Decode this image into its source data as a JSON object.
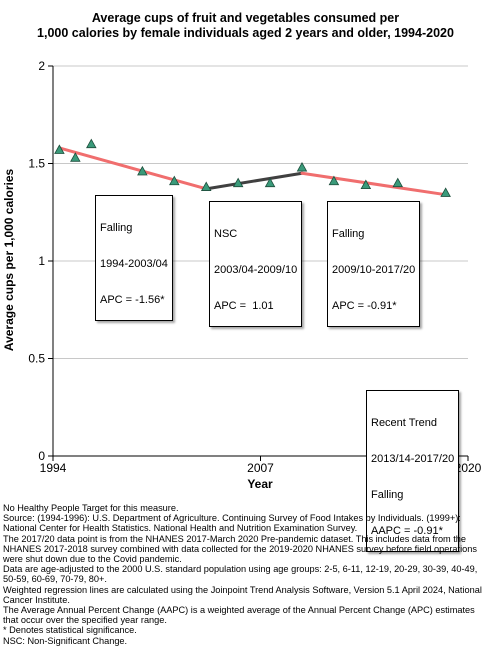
{
  "chart_data": {
    "type": "line",
    "title_lines": [
      "Average cups of fruit and vegetables consumed per",
      "1,000 calories by female individuals aged 2 years and older, 1994-2020"
    ],
    "xlabel": "Year",
    "ylabel": "Average cups per 1,000 calories",
    "xlim": [
      1994,
      2020
    ],
    "ylim": [
      0,
      2
    ],
    "x_ticks": [
      1994,
      2007,
      2020
    ],
    "y_ticks": [
      0,
      0.5,
      1,
      1.5,
      2
    ],
    "y_tick_labels": [
      "0",
      "0.5",
      "1",
      "1.5",
      "2"
    ],
    "grid": "horizontal",
    "observed": {
      "x": [
        1994.4,
        1995.4,
        1996.4,
        1999.6,
        2001.6,
        2003.6,
        2005.6,
        2007.6,
        2009.6,
        2011.6,
        2013.6,
        2015.6,
        2018.6
      ],
      "y": [
        1.57,
        1.53,
        1.6,
        1.46,
        1.41,
        1.38,
        1.4,
        1.4,
        1.48,
        1.41,
        1.39,
        1.4,
        1.35
      ],
      "color": "#3a9a7a"
    },
    "trend_segments": [
      {
        "x": [
          1994.4,
          2003.6
        ],
        "y": [
          1.58,
          1.37
        ],
        "color": "#f06e6e"
      },
      {
        "x": [
          2003.6,
          2009.6
        ],
        "y": [
          1.37,
          1.45
        ],
        "color": "#404040"
      },
      {
        "x": [
          2009.6,
          2018.6
        ],
        "y": [
          1.45,
          1.34
        ],
        "color": "#f06e6e"
      }
    ],
    "annotations": [
      {
        "lines": [
          "Falling",
          "1994-2003/04",
          "APC = -1.56*"
        ]
      },
      {
        "lines": [
          "NSC",
          "2003/04-2009/10",
          "APC =  1.01"
        ]
      },
      {
        "lines": [
          "Falling",
          "2009/10-2017/20",
          "APC = -0.91*"
        ]
      },
      {
        "lines": [
          "Recent Trend",
          "2013/14-2017/20",
          "Falling",
          "AAPC = -0.91*"
        ]
      }
    ]
  },
  "footnotes": [
    "No Healthy People Target for this measure.",
    "Source: (1994-1996): U.S. Department of Agriculture. Continuing Survey of Food Intakes by Individuals. (1999+): National Center for Health Statistics. National Health and Nutrition Examination Survey.",
    "The 2017/20 data point is from the NHANES 2017-March 2020 Pre-pandemic dataset. This includes data from the NHANES 2017-2018 survey combined with data collected for the 2019-2020 NHANES survey before field operations were shut down due to the Covid pandemic.",
    "Data are age-adjusted to the 2000 U.S. standard population using age groups: 2-5, 6-11, 12-19, 20-29, 30-39, 40-49, 50-59, 60-69, 70-79, 80+.",
    "Weighted regression lines are calculated using the Joinpoint Trend Analysis Software, Version 5.1 April 2024, National Cancer Institute.",
    "The Average Annual Percent Change (AAPC) is a weighted average of the Annual Percent Change (APC) estimates that occur over the specified year range.",
    "* Denotes statistical significance.",
    "NSC: Non-Significant Change."
  ]
}
